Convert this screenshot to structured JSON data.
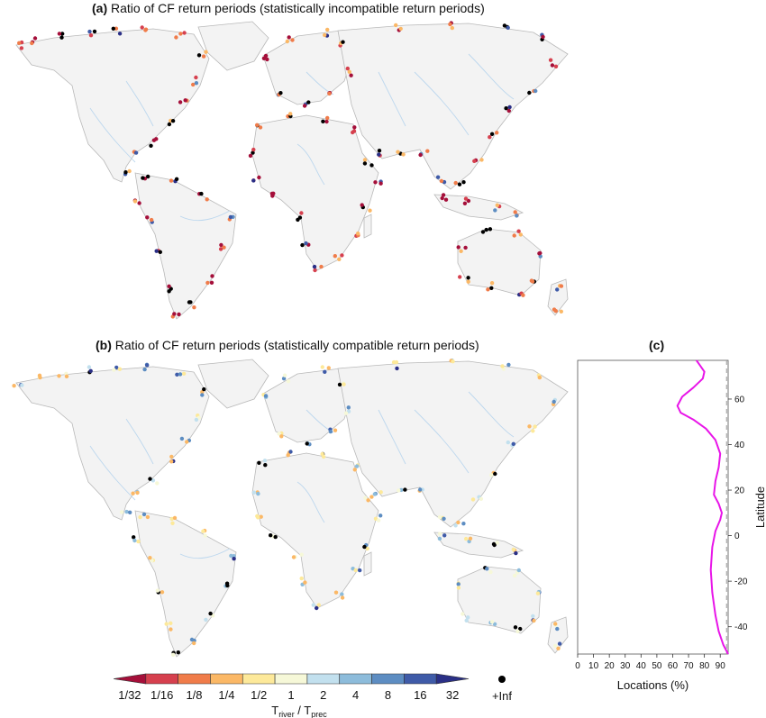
{
  "panel_a": {
    "label": "(a)",
    "title": "Ratio of CF return periods  (statistically incompatible return periods)"
  },
  "panel_b": {
    "label": "(b)",
    "title": "Ratio of CF return periods (statistically compatible return periods)"
  },
  "panel_c": {
    "label": "(c)"
  },
  "colorbar": {
    "tick_labels": [
      "1/32",
      "1/16",
      "1/8",
      "1/4",
      "1/2",
      "1",
      "2",
      "4",
      "8",
      "16",
      "32"
    ],
    "inf_label": "+Inf",
    "label_main": "T",
    "label_sub1": "river",
    "label_mid": " / T",
    "label_sub2": "prec",
    "colors": [
      "#a50f3a",
      "#d6404e",
      "#f07c4a",
      "#fbb866",
      "#fde99a",
      "#f6f8d8",
      "#c2e0ee",
      "#8dbcdb",
      "#5d8dc2",
      "#3f5ba8",
      "#2a2f86"
    ]
  },
  "chart_data": [
    {
      "type": "map",
      "panel": "a",
      "title": "Ratio of CF return periods  (statistically incompatible return periods)",
      "note": "Coastal river locations coloured by T_river / T_prec; predominantly red (ratios < 1) with some black (+Inf) and blue points"
    },
    {
      "type": "map",
      "panel": "b",
      "title": "Ratio of CF return periods (statistically compatible return periods)",
      "note": "Coastal river locations coloured by T_river / T_prec; mostly yellow/orange/light blue (ratios near 1) with some black (+Inf)"
    },
    {
      "type": "line",
      "panel": "c",
      "xlabel": "Locations (%)",
      "ylabel": "Latitude",
      "xlim": [
        0,
        95
      ],
      "ylim": [
        -52,
        77
      ],
      "xticks": [
        0,
        10,
        20,
        30,
        40,
        50,
        60,
        70,
        80,
        90
      ],
      "yticks": [
        -40,
        -20,
        0,
        20,
        40,
        60
      ],
      "reference_line_x": 94,
      "series": [
        {
          "color": "#e815e8",
          "points": [
            [
              95,
              -52
            ],
            [
              92,
              -48
            ],
            [
              89,
              -42
            ],
            [
              87,
              -35
            ],
            [
              85,
              -25
            ],
            [
              84,
              -15
            ],
            [
              85,
              -5
            ],
            [
              87,
              2
            ],
            [
              90,
              7
            ],
            [
              91,
              10
            ],
            [
              89,
              14
            ],
            [
              86,
              18
            ],
            [
              87,
              24
            ],
            [
              89,
              30
            ],
            [
              90,
              36
            ],
            [
              87,
              42
            ],
            [
              81,
              47
            ],
            [
              73,
              51
            ],
            [
              65,
              54
            ],
            [
              63,
              57
            ],
            [
              66,
              61
            ],
            [
              73,
              65
            ],
            [
              79,
              69
            ],
            [
              80,
              72
            ],
            [
              77,
              75
            ],
            [
              75,
              77
            ]
          ]
        }
      ]
    }
  ]
}
